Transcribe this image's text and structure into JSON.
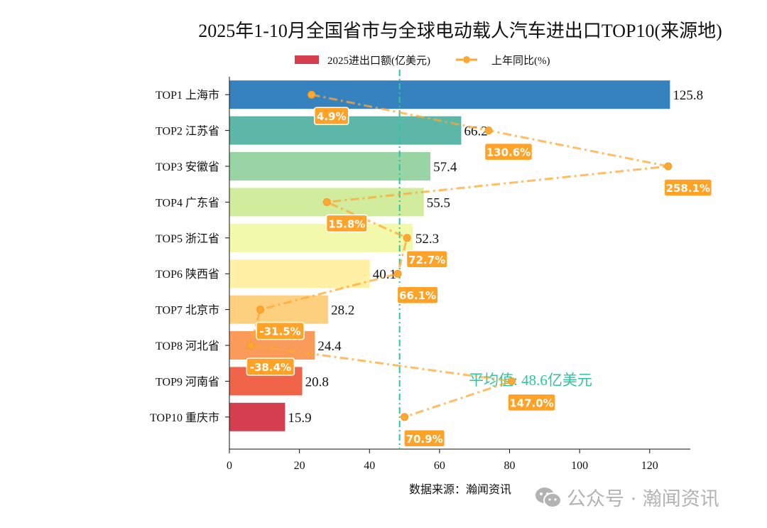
{
  "chart_data": {
    "type": "bar",
    "orientation": "horizontal",
    "title": "2025年1-10月全国省市与全球电动载人汽车进出口TOP10(来源地)",
    "categories": [
      "TOP1 上海市",
      "TOP2 江苏省",
      "TOP3 安徽省",
      "TOP4 广东省",
      "TOP5 浙江省",
      "TOP6 陕西省",
      "TOP7 北京市",
      "TOP8 河北省",
      "TOP9 河南省",
      "TOP10 重庆市"
    ],
    "series": [
      {
        "name": "2025进出口额(亿美元)",
        "type": "bar",
        "values": [
          125.8,
          66.2,
          57.4,
          55.5,
          52.3,
          40.1,
          28.2,
          24.4,
          20.8,
          15.9
        ],
        "colors": [
          "#3682be",
          "#5cb7a9",
          "#99d5a4",
          "#d1ec9c",
          "#f2f9aa",
          "#fef1a6",
          "#fdd07f",
          "#fa9b59",
          "#f0654a",
          "#d53e4f"
        ]
      },
      {
        "name": "上年同比(%)",
        "type": "line",
        "values": [
          4.9,
          130.6,
          258.1,
          15.8,
          72.7,
          66.1,
          -31.5,
          -38.4,
          147.0,
          70.9
        ],
        "labels": [
          "4.9%",
          "130.6%",
          "258.1%",
          "15.8%",
          "72.7%",
          "66.1%",
          "-31.5%",
          "-38.4%",
          "147.0%",
          "70.9%"
        ],
        "color": "#ffa733"
      }
    ],
    "xlim": [
      0,
      131.6
    ],
    "xticks": [
      "0",
      "20",
      "40",
      "60",
      "80",
      "100",
      "120"
    ],
    "average": {
      "value": 48.6,
      "label": "平均值: 48.6亿美元",
      "color": "#2ec4a0"
    },
    "legend": "top-center",
    "grid": false
  },
  "source": "数据来源：瀚闻资讯",
  "watermark": "公众号 · 瀚闻资讯"
}
